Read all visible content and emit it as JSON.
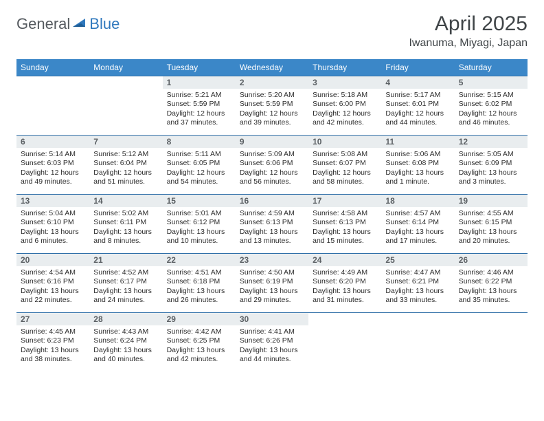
{
  "brand": {
    "word1": "General",
    "word2": "Blue"
  },
  "title": "April 2025",
  "location": "Iwanuma, Miyagi, Japan",
  "colors": {
    "header_bg": "#3b87c8",
    "header_text": "#ffffff",
    "row_border": "#2f6fa8",
    "daynum_bg": "#e9edef",
    "daynum_text": "#5b6064",
    "logo_gray": "#555a5f",
    "logo_blue": "#2f78bd",
    "title_text": "#404548",
    "body_text": "#2c2c2c"
  },
  "typography": {
    "month_title_fontsize": 30,
    "location_fontsize": 16,
    "dow_fontsize": 12,
    "daynum_fontsize": 12,
    "details_fontsize": 10.5
  },
  "day_headers": [
    "Sunday",
    "Monday",
    "Tuesday",
    "Wednesday",
    "Thursday",
    "Friday",
    "Saturday"
  ],
  "weeks": [
    [
      null,
      null,
      {
        "n": "1",
        "sunrise": "5:21 AM",
        "sunset": "5:59 PM",
        "daylight": "12 hours and 37 minutes."
      },
      {
        "n": "2",
        "sunrise": "5:20 AM",
        "sunset": "5:59 PM",
        "daylight": "12 hours and 39 minutes."
      },
      {
        "n": "3",
        "sunrise": "5:18 AM",
        "sunset": "6:00 PM",
        "daylight": "12 hours and 42 minutes."
      },
      {
        "n": "4",
        "sunrise": "5:17 AM",
        "sunset": "6:01 PM",
        "daylight": "12 hours and 44 minutes."
      },
      {
        "n": "5",
        "sunrise": "5:15 AM",
        "sunset": "6:02 PM",
        "daylight": "12 hours and 46 minutes."
      }
    ],
    [
      {
        "n": "6",
        "sunrise": "5:14 AM",
        "sunset": "6:03 PM",
        "daylight": "12 hours and 49 minutes."
      },
      {
        "n": "7",
        "sunrise": "5:12 AM",
        "sunset": "6:04 PM",
        "daylight": "12 hours and 51 minutes."
      },
      {
        "n": "8",
        "sunrise": "5:11 AM",
        "sunset": "6:05 PM",
        "daylight": "12 hours and 54 minutes."
      },
      {
        "n": "9",
        "sunrise": "5:09 AM",
        "sunset": "6:06 PM",
        "daylight": "12 hours and 56 minutes."
      },
      {
        "n": "10",
        "sunrise": "5:08 AM",
        "sunset": "6:07 PM",
        "daylight": "12 hours and 58 minutes."
      },
      {
        "n": "11",
        "sunrise": "5:06 AM",
        "sunset": "6:08 PM",
        "daylight": "13 hours and 1 minute."
      },
      {
        "n": "12",
        "sunrise": "5:05 AM",
        "sunset": "6:09 PM",
        "daylight": "13 hours and 3 minutes."
      }
    ],
    [
      {
        "n": "13",
        "sunrise": "5:04 AM",
        "sunset": "6:10 PM",
        "daylight": "13 hours and 6 minutes."
      },
      {
        "n": "14",
        "sunrise": "5:02 AM",
        "sunset": "6:11 PM",
        "daylight": "13 hours and 8 minutes."
      },
      {
        "n": "15",
        "sunrise": "5:01 AM",
        "sunset": "6:12 PM",
        "daylight": "13 hours and 10 minutes."
      },
      {
        "n": "16",
        "sunrise": "4:59 AM",
        "sunset": "6:13 PM",
        "daylight": "13 hours and 13 minutes."
      },
      {
        "n": "17",
        "sunrise": "4:58 AM",
        "sunset": "6:13 PM",
        "daylight": "13 hours and 15 minutes."
      },
      {
        "n": "18",
        "sunrise": "4:57 AM",
        "sunset": "6:14 PM",
        "daylight": "13 hours and 17 minutes."
      },
      {
        "n": "19",
        "sunrise": "4:55 AM",
        "sunset": "6:15 PM",
        "daylight": "13 hours and 20 minutes."
      }
    ],
    [
      {
        "n": "20",
        "sunrise": "4:54 AM",
        "sunset": "6:16 PM",
        "daylight": "13 hours and 22 minutes."
      },
      {
        "n": "21",
        "sunrise": "4:52 AM",
        "sunset": "6:17 PM",
        "daylight": "13 hours and 24 minutes."
      },
      {
        "n": "22",
        "sunrise": "4:51 AM",
        "sunset": "6:18 PM",
        "daylight": "13 hours and 26 minutes."
      },
      {
        "n": "23",
        "sunrise": "4:50 AM",
        "sunset": "6:19 PM",
        "daylight": "13 hours and 29 minutes."
      },
      {
        "n": "24",
        "sunrise": "4:49 AM",
        "sunset": "6:20 PM",
        "daylight": "13 hours and 31 minutes."
      },
      {
        "n": "25",
        "sunrise": "4:47 AM",
        "sunset": "6:21 PM",
        "daylight": "13 hours and 33 minutes."
      },
      {
        "n": "26",
        "sunrise": "4:46 AM",
        "sunset": "6:22 PM",
        "daylight": "13 hours and 35 minutes."
      }
    ],
    [
      {
        "n": "27",
        "sunrise": "4:45 AM",
        "sunset": "6:23 PM",
        "daylight": "13 hours and 38 minutes."
      },
      {
        "n": "28",
        "sunrise": "4:43 AM",
        "sunset": "6:24 PM",
        "daylight": "13 hours and 40 minutes."
      },
      {
        "n": "29",
        "sunrise": "4:42 AM",
        "sunset": "6:25 PM",
        "daylight": "13 hours and 42 minutes."
      },
      {
        "n": "30",
        "sunrise": "4:41 AM",
        "sunset": "6:26 PM",
        "daylight": "13 hours and 44 minutes."
      },
      null,
      null,
      null
    ]
  ],
  "labels": {
    "sunrise": "Sunrise:",
    "sunset": "Sunset:",
    "daylight": "Daylight:"
  }
}
